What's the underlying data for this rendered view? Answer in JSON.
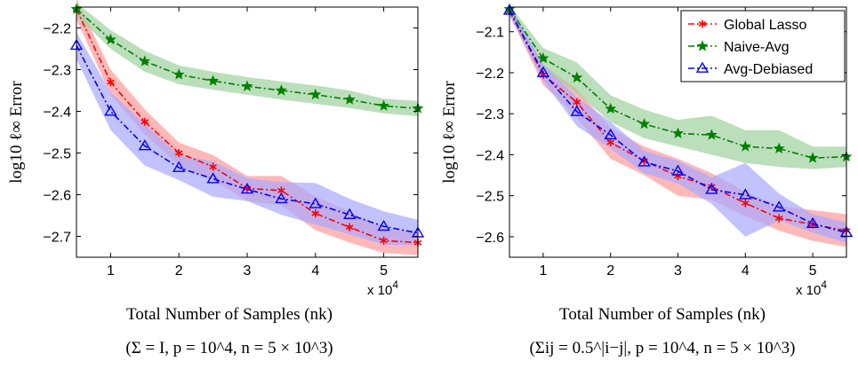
{
  "chart_data": [
    {
      "type": "line",
      "title": "",
      "xlabel": "Total Number of Samples (nk)",
      "ylabel": "log10 ℓ∞ Error",
      "x_multiplier": "x 10^4",
      "caption": "(Σ = I, p = 10^4, n = 5 × 10^3)",
      "xlim": [
        0.5,
        5.5
      ],
      "ylim": [
        -2.75,
        -2.15
      ],
      "xticks": [
        1,
        2,
        3,
        4,
        5
      ],
      "yticks": [
        -2.2,
        -2.3,
        -2.4,
        -2.5,
        -2.6,
        -2.7
      ],
      "xtick_labels": [
        "1",
        "2",
        "3",
        "4",
        "5"
      ],
      "ytick_labels": [
        "−2.2",
        "−2.3",
        "−2.4",
        "−2.5",
        "−2.6",
        "−2.7"
      ],
      "legend": false,
      "x": [
        0.5,
        1,
        1.5,
        2,
        2.5,
        3,
        3.5,
        4,
        4.5,
        5,
        5.5
      ],
      "series": [
        {
          "name": "Global Lasso",
          "color": "#ff0000",
          "band_color": "#ff9a9a",
          "marker": "asterisk",
          "values": [
            -2.155,
            -2.33,
            -2.425,
            -2.5,
            -2.533,
            -2.585,
            -2.59,
            -2.645,
            -2.678,
            -2.71,
            -2.715
          ],
          "lower": [
            -2.18,
            -2.36,
            -2.455,
            -2.53,
            -2.565,
            -2.615,
            -2.625,
            -2.685,
            -2.715,
            -2.74,
            -2.745
          ],
          "upper": [
            -2.13,
            -2.3,
            -2.395,
            -2.475,
            -2.505,
            -2.555,
            -2.555,
            -2.605,
            -2.64,
            -2.68,
            -2.69
          ]
        },
        {
          "name": "Naive-Avg",
          "color": "#008000",
          "band_color": "#9ed09e",
          "marker": "star",
          "values": [
            -2.155,
            -2.228,
            -2.28,
            -2.312,
            -2.327,
            -2.34,
            -2.35,
            -2.36,
            -2.372,
            -2.387,
            -2.393
          ],
          "lower": [
            -2.17,
            -2.25,
            -2.305,
            -2.335,
            -2.348,
            -2.36,
            -2.372,
            -2.382,
            -2.392,
            -2.405,
            -2.412
          ],
          "upper": [
            -2.14,
            -2.205,
            -2.255,
            -2.29,
            -2.305,
            -2.318,
            -2.328,
            -2.338,
            -2.35,
            -2.37,
            -2.375
          ]
        },
        {
          "name": "Avg-Debiased",
          "color": "#0000ff",
          "band_color": "#a8a8ff",
          "marker": "triangle",
          "values": [
            -2.242,
            -2.4,
            -2.483,
            -2.535,
            -2.562,
            -2.587,
            -2.61,
            -2.622,
            -2.648,
            -2.676,
            -2.692
          ],
          "lower": [
            -2.275,
            -2.445,
            -2.53,
            -2.565,
            -2.605,
            -2.615,
            -2.648,
            -2.672,
            -2.695,
            -2.72,
            -2.722
          ],
          "upper": [
            -2.21,
            -2.355,
            -2.43,
            -2.505,
            -2.52,
            -2.56,
            -2.57,
            -2.572,
            -2.61,
            -2.64,
            -2.66
          ]
        }
      ]
    },
    {
      "type": "line",
      "title": "",
      "xlabel": "Total Number of Samples (nk)",
      "ylabel": "log10 ℓ∞ Error",
      "x_multiplier": "x 10^4",
      "caption": "(Σij = 0.5^|i−j|, p = 10^4, n = 5 × 10^3)",
      "xlim": [
        0.5,
        5.5
      ],
      "ylim": [
        -2.65,
        -2.04
      ],
      "xticks": [
        1,
        2,
        3,
        4,
        5
      ],
      "yticks": [
        -2.1,
        -2.2,
        -2.3,
        -2.4,
        -2.5,
        -2.6
      ],
      "xtick_labels": [
        "1",
        "2",
        "3",
        "4",
        "5"
      ],
      "ytick_labels": [
        "−2.1",
        "−2.2",
        "−2.3",
        "−2.4",
        "−2.5",
        "−2.6"
      ],
      "legend": true,
      "legend_position": "top-right",
      "x": [
        0.5,
        1,
        1.5,
        2,
        2.5,
        3,
        3.5,
        4,
        4.5,
        5,
        5.5
      ],
      "series": [
        {
          "name": "Global Lasso",
          "color": "#ff0000",
          "band_color": "#ff9a9a",
          "marker": "asterisk",
          "values": [
            -2.05,
            -2.205,
            -2.272,
            -2.37,
            -2.415,
            -2.452,
            -2.478,
            -2.518,
            -2.555,
            -2.57,
            -2.585
          ],
          "lower": [
            -2.06,
            -2.23,
            -2.31,
            -2.41,
            -2.45,
            -2.5,
            -2.51,
            -2.55,
            -2.585,
            -2.61,
            -2.625
          ],
          "upper": [
            -2.04,
            -2.18,
            -2.24,
            -2.335,
            -2.38,
            -2.41,
            -2.445,
            -2.49,
            -2.525,
            -2.535,
            -2.545
          ]
        },
        {
          "name": "Naive-Avg",
          "color": "#008000",
          "band_color": "#9ed09e",
          "marker": "star",
          "values": [
            -2.045,
            -2.165,
            -2.212,
            -2.288,
            -2.325,
            -2.348,
            -2.352,
            -2.38,
            -2.385,
            -2.408,
            -2.405
          ],
          "lower": [
            -2.055,
            -2.19,
            -2.25,
            -2.32,
            -2.36,
            -2.38,
            -2.4,
            -2.42,
            -2.43,
            -2.435,
            -2.43
          ],
          "upper": [
            -2.035,
            -2.14,
            -2.175,
            -2.255,
            -2.29,
            -2.315,
            -2.305,
            -2.34,
            -2.34,
            -2.38,
            -2.38
          ]
        },
        {
          "name": "Avg-Debiased",
          "color": "#0000ff",
          "band_color": "#a8a8ff",
          "marker": "triangle",
          "values": [
            -2.048,
            -2.2,
            -2.295,
            -2.352,
            -2.418,
            -2.44,
            -2.485,
            -2.498,
            -2.528,
            -2.568,
            -2.59
          ],
          "lower": [
            -2.06,
            -2.22,
            -2.33,
            -2.385,
            -2.445,
            -2.47,
            -2.52,
            -2.6,
            -2.56,
            -2.59,
            -2.615
          ],
          "upper": [
            -2.035,
            -2.18,
            -2.26,
            -2.32,
            -2.39,
            -2.415,
            -2.455,
            -2.42,
            -2.495,
            -2.545,
            -2.565
          ]
        }
      ]
    }
  ]
}
